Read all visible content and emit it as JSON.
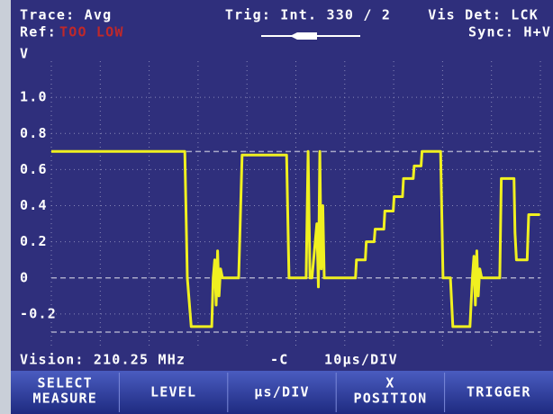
{
  "header": {
    "trace": "Trace: Avg",
    "ref_label": "Ref:",
    "ref_value": "TOO LOW",
    "trigger": "Trig: Int.  330 / 2",
    "vis_det": "Vis Det: LCK",
    "sync": "Sync: H+V"
  },
  "chart_data": {
    "type": "line",
    "ylabel": "V",
    "x": [
      0,
      27.3,
      27.8,
      28.6,
      32.8,
      33.1,
      33.4,
      33.7,
      34.0,
      34.3,
      34.6,
      35.0,
      38.3,
      39.0,
      48.1,
      48.6,
      52.1,
      52.5,
      52.9,
      53.3,
      54.3,
      54.6,
      54.9,
      55.2,
      55.5,
      55.8,
      56.5,
      62.2,
      62.4,
      64.2,
      64.4,
      66.0,
      66.2,
      68.0,
      68.2,
      69.9,
      70.1,
      71.8,
      72.0,
      74.0,
      74.2,
      75.6,
      75.8,
      79.6,
      80.1,
      81.6,
      82.1,
      85.6,
      86.1,
      86.4,
      86.7,
      87.0,
      87.3,
      87.6,
      88.0,
      91.7,
      92.0,
      94.6,
      94.8,
      95.1,
      97.3,
      97.6,
      99.9
    ],
    "values": [
      0.7,
      0.7,
      0.0,
      -0.27,
      -0.27,
      0.0,
      0.1,
      -0.15,
      0.15,
      -0.1,
      0.05,
      0,
      0,
      0.68,
      0.68,
      0,
      0,
      0.7,
      0,
      0,
      0.3,
      -0.05,
      0.7,
      0.05,
      0.4,
      0,
      0,
      0,
      0.1,
      0.1,
      0.2,
      0.2,
      0.27,
      0.27,
      0.37,
      0.37,
      0.45,
      0.45,
      0.55,
      0.55,
      0.62,
      0.62,
      0.7,
      0.7,
      0,
      0,
      -0.27,
      -0.27,
      0,
      0.12,
      -0.15,
      0.15,
      -0.1,
      0.05,
      0,
      0,
      0.55,
      0.55,
      0.25,
      0.1,
      0.1,
      0.35,
      0.35
    ],
    "color": "#f0f020",
    "xlim": [
      0,
      100
    ],
    "xticks": [
      0,
      10,
      20,
      30,
      40,
      50,
      60,
      70,
      80,
      90,
      100
    ],
    "ylim": [
      -0.38,
      1.2
    ],
    "yticks": [
      {
        "value": 1,
        "label": "1.0"
      },
      0.8,
      0.6,
      0.4,
      0.2,
      0,
      -0.2
    ],
    "ref_lines": [
      0.7,
      0,
      -0.3
    ],
    "grid": true
  },
  "footer": {
    "vision": "Vision: 210.25 MHz",
    "timebase": "10µs/DIV"
  },
  "softkeys": [
    [
      "SELECT",
      "MEASURE"
    ],
    [
      "LEVEL"
    ],
    [
      "µs/DIV"
    ],
    [
      "X",
      "POSITION"
    ],
    [
      "TRIGGER"
    ]
  ]
}
